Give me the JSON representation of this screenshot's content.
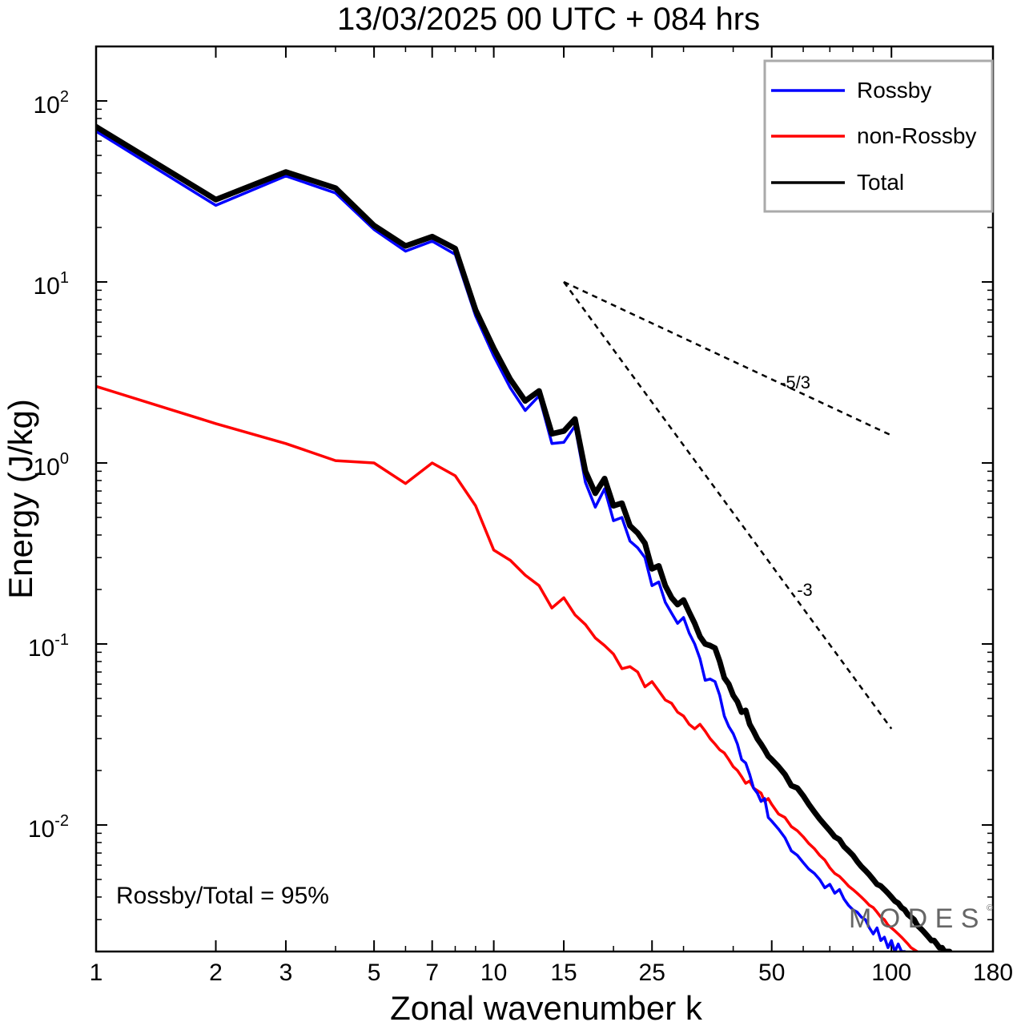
{
  "chart_data": {
    "type": "line",
    "title": "13/03/2025  00 UTC  + 084 hrs",
    "xlabel": "Zonal wavenumber k",
    "ylabel": "Energy (J/kg)",
    "x_scale": "log",
    "y_scale": "log",
    "xlim": [
      1,
      180
    ],
    "ylim": [
      0.002,
      200
    ],
    "x_ticks": [
      1,
      2,
      3,
      5,
      7,
      10,
      15,
      25,
      50,
      100,
      180
    ],
    "x_tick_labels": [
      "1",
      "2",
      "3",
      "5",
      "7",
      "10",
      "15",
      "25",
      "50",
      "100",
      "180"
    ],
    "y_ticks": [
      {
        "base": "10",
        "exp": "2",
        "value": 100
      },
      {
        "base": "10",
        "exp": "1",
        "value": 10
      },
      {
        "base": "10",
        "exp": "0",
        "value": 1
      },
      {
        "base": "10",
        "exp": "-1",
        "value": 0.1
      },
      {
        "base": "10",
        "exp": "-2",
        "value": 0.01
      }
    ],
    "legend_position": "top-right",
    "annotation": "Rossby/Total = 95%",
    "watermark": "M O D E S",
    "watermark_mark": "©",
    "colors": {
      "rossby": "#0000ff",
      "non_rossby": "#ff0000",
      "total": "#000000",
      "guide": "#000000"
    },
    "reference_slopes": [
      {
        "label": "-5/3",
        "x": [
          15,
          100
        ],
        "y": [
          10,
          1.42
        ]
      },
      {
        "label": "-3",
        "x": [
          15,
          100
        ],
        "y": [
          10,
          0.034
        ]
      }
    ],
    "series": [
      {
        "name": "Rossby",
        "color": "#0000ff",
        "x": [
          1,
          2,
          3,
          4,
          5,
          6,
          7,
          8,
          9,
          10,
          11,
          12,
          13,
          14,
          15,
          16,
          17,
          18,
          19,
          20,
          21,
          22,
          23,
          24,
          25,
          26,
          27,
          28,
          29,
          30,
          31,
          32,
          33,
          34,
          35,
          36,
          37,
          38,
          39,
          40,
          41,
          42,
          43,
          44,
          45,
          46,
          47,
          48,
          49,
          50,
          52,
          54,
          56,
          58,
          60,
          62,
          64,
          66,
          68,
          70,
          72,
          74,
          76,
          78,
          80,
          82,
          84,
          86,
          88,
          90,
          92,
          94,
          96,
          98,
          100,
          102,
          104,
          106,
          108
        ],
        "y": [
          68,
          26.5,
          38.5,
          31,
          19.5,
          14.8,
          16.8,
          14.2,
          6.5,
          3.9,
          2.6,
          1.95,
          2.35,
          1.28,
          1.3,
          1.6,
          0.78,
          0.57,
          0.72,
          0.48,
          0.5,
          0.37,
          0.34,
          0.3,
          0.21,
          0.22,
          0.17,
          0.148,
          0.13,
          0.14,
          0.115,
          0.1,
          0.083,
          0.063,
          0.064,
          0.062,
          0.052,
          0.04,
          0.035,
          0.032,
          0.028,
          0.023,
          0.022,
          0.019,
          0.016,
          0.015,
          0.0135,
          0.014,
          0.011,
          0.0105,
          0.0095,
          0.0085,
          0.0072,
          0.0068,
          0.0062,
          0.0057,
          0.0054,
          0.005,
          0.0045,
          0.0047,
          0.0042,
          0.0044,
          0.0039,
          0.0036,
          0.0034,
          0.0033,
          0.0031,
          0.003,
          0.0027,
          0.0025,
          0.0027,
          0.0023,
          0.0024,
          0.0021,
          0.0023,
          0.002,
          0.0022,
          0.002,
          0.002
        ]
      },
      {
        "name": "non-Rossby",
        "color": "#ff0000",
        "x": [
          1,
          2,
          3,
          4,
          5,
          6,
          7,
          8,
          9,
          10,
          11,
          12,
          13,
          14,
          15,
          16,
          17,
          18,
          19,
          20,
          21,
          22,
          23,
          24,
          25,
          26,
          27,
          28,
          29,
          30,
          31,
          32,
          33,
          34,
          35,
          36,
          37,
          38,
          39,
          40,
          41,
          42,
          43,
          44,
          45,
          46,
          47,
          48,
          49,
          50,
          52,
          54,
          56,
          58,
          60,
          62,
          64,
          66,
          68,
          70,
          72,
          74,
          76,
          78,
          80,
          82,
          84,
          86,
          88,
          90,
          92,
          94,
          96,
          98,
          100,
          102,
          104,
          106,
          108,
          110,
          112,
          114,
          116
        ],
        "y": [
          2.65,
          1.65,
          1.28,
          1.03,
          1.0,
          0.77,
          1.0,
          0.85,
          0.58,
          0.33,
          0.29,
          0.24,
          0.21,
          0.158,
          0.18,
          0.145,
          0.128,
          0.108,
          0.098,
          0.088,
          0.073,
          0.075,
          0.07,
          0.058,
          0.062,
          0.055,
          0.049,
          0.047,
          0.042,
          0.04,
          0.036,
          0.034,
          0.036,
          0.033,
          0.03,
          0.028,
          0.026,
          0.025,
          0.023,
          0.021,
          0.02,
          0.0185,
          0.017,
          0.0175,
          0.016,
          0.0155,
          0.015,
          0.0135,
          0.014,
          0.013,
          0.0115,
          0.011,
          0.0098,
          0.0093,
          0.0086,
          0.0079,
          0.0074,
          0.0068,
          0.0064,
          0.0058,
          0.0054,
          0.0052,
          0.0049,
          0.0046,
          0.0044,
          0.0042,
          0.004,
          0.0038,
          0.0036,
          0.0035,
          0.0033,
          0.0031,
          0.003,
          0.0028,
          0.0027,
          0.0026,
          0.0025,
          0.0024,
          0.0023,
          0.0022,
          0.0021,
          0.00205,
          0.002
        ]
      },
      {
        "name": "Total",
        "color": "#000000",
        "x": [
          1,
          2,
          3,
          4,
          5,
          6,
          7,
          8,
          9,
          10,
          11,
          12,
          13,
          14,
          15,
          16,
          17,
          18,
          19,
          20,
          21,
          22,
          23,
          24,
          25,
          26,
          27,
          28,
          29,
          30,
          31,
          32,
          33,
          34,
          35,
          36,
          37,
          38,
          39,
          40,
          41,
          42,
          43,
          44,
          45,
          46,
          47,
          48,
          49,
          50,
          52,
          54,
          56,
          58,
          60,
          62,
          64,
          66,
          68,
          70,
          72,
          74,
          76,
          78,
          80,
          82,
          84,
          86,
          88,
          90,
          92,
          94,
          96,
          98,
          100,
          102,
          104,
          106,
          108,
          110,
          112,
          114,
          116,
          118,
          120,
          122,
          124,
          126,
          128,
          130,
          132,
          134,
          136,
          138,
          140
        ],
        "y": [
          72,
          28.5,
          40.5,
          33,
          20.5,
          15.8,
          17.8,
          15.3,
          7.0,
          4.3,
          2.9,
          2.2,
          2.5,
          1.45,
          1.5,
          1.75,
          0.9,
          0.68,
          0.82,
          0.58,
          0.6,
          0.45,
          0.41,
          0.36,
          0.26,
          0.27,
          0.21,
          0.18,
          0.165,
          0.175,
          0.15,
          0.13,
          0.11,
          0.1,
          0.098,
          0.095,
          0.08,
          0.065,
          0.06,
          0.052,
          0.048,
          0.042,
          0.043,
          0.036,
          0.033,
          0.03,
          0.028,
          0.026,
          0.024,
          0.023,
          0.021,
          0.019,
          0.0165,
          0.016,
          0.0145,
          0.013,
          0.0118,
          0.0108,
          0.01,
          0.0093,
          0.0086,
          0.0083,
          0.0076,
          0.0072,
          0.0068,
          0.0063,
          0.0059,
          0.0056,
          0.0053,
          0.005,
          0.0047,
          0.0046,
          0.0044,
          0.0042,
          0.004,
          0.0038,
          0.0037,
          0.0035,
          0.0034,
          0.0032,
          0.0031,
          0.003,
          0.0028,
          0.0027,
          0.0026,
          0.0025,
          0.0024,
          0.0023,
          0.0023,
          0.0022,
          0.0021,
          0.0021,
          0.002,
          0.002,
          0.002
        ]
      }
    ]
  }
}
